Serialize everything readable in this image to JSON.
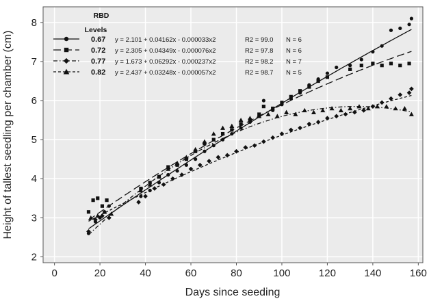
{
  "chart_data": {
    "type": "scatter",
    "xlabel": "Days since seeding",
    "ylabel": "Height of tallest seedling per chamber (cm)",
    "xlim": [
      -5,
      162
    ],
    "ylim": [
      1.85,
      8.4
    ],
    "xticks": [
      0,
      20,
      40,
      60,
      80,
      100,
      120,
      140,
      160
    ],
    "yticks": [
      2,
      3,
      4,
      5,
      6,
      7,
      8
    ],
    "grid": true,
    "legend_title": "RBD\nLevels",
    "legend_placement": "top-left",
    "series": [
      {
        "name": "0.67",
        "marker": "circle",
        "line_style": "solid",
        "equation": "y = 2.101 + 0.04162x - 0.000033x2",
        "r2": "R2 = 99.0",
        "n": "N = 6",
        "coef": [
          2.101,
          0.04162,
          -3.3e-05
        ],
        "x": [
          15,
          18,
          20,
          22,
          24,
          38,
          42,
          46,
          50,
          54,
          58,
          62,
          66,
          70,
          74,
          78,
          82,
          86,
          90,
          92,
          96,
          100,
          104,
          108,
          112,
          116,
          120,
          124,
          130,
          135,
          140,
          144,
          148,
          152,
          156,
          157
        ],
        "y": [
          2.6,
          2.9,
          3.0,
          3.15,
          3.3,
          3.55,
          3.7,
          3.9,
          4.1,
          4.2,
          4.35,
          4.5,
          4.7,
          4.85,
          5.0,
          5.15,
          5.3,
          5.45,
          5.6,
          6.0,
          5.75,
          5.9,
          6.05,
          6.2,
          6.4,
          6.55,
          6.7,
          6.85,
          6.9,
          7.05,
          7.25,
          7.4,
          7.8,
          7.85,
          7.95,
          8.1
        ]
      },
      {
        "name": "0.72",
        "marker": "square",
        "line_style": "long-dash",
        "equation": "y = 2.305 + 0.04349x - 0.000076x2",
        "r2": "R2 = 97.8",
        "n": "N = 6",
        "coef": [
          2.305,
          0.04349,
          -7.6e-05
        ],
        "x": [
          15,
          17,
          19,
          21,
          23,
          38,
          42,
          46,
          50,
          54,
          58,
          62,
          66,
          70,
          74,
          78,
          82,
          86,
          90,
          92,
          96,
          100,
          104,
          108,
          112,
          116,
          120,
          130,
          135,
          140,
          144,
          148,
          152,
          156
        ],
        "y": [
          3.15,
          3.45,
          3.5,
          3.3,
          3.45,
          3.75,
          3.9,
          4.05,
          4.3,
          4.35,
          4.5,
          4.7,
          4.9,
          5.0,
          5.15,
          5.25,
          5.4,
          5.5,
          5.65,
          5.85,
          5.8,
          5.95,
          6.1,
          6.25,
          6.35,
          6.5,
          6.6,
          6.8,
          6.9,
          6.95,
          6.9,
          6.95,
          6.9,
          6.95
        ]
      },
      {
        "name": "0.77",
        "marker": "diamond",
        "line_style": "dash-dot",
        "equation": "y = 1.673 + 0.06292x - 0.000237x2",
        "r2": "R2 = 98.2",
        "n": "N = 7",
        "coef": [
          1.673,
          0.06292,
          -0.000237
        ],
        "x": [
          15,
          18,
          21,
          24,
          37,
          40,
          44,
          48,
          52,
          56,
          60,
          64,
          68,
          72,
          76,
          80,
          84,
          88,
          92,
          96,
          100,
          104,
          108,
          112,
          116,
          120,
          124,
          128,
          132,
          136,
          140,
          144,
          148,
          152,
          156,
          157
        ],
        "y": [
          2.65,
          2.95,
          3.05,
          3.0,
          3.4,
          3.55,
          3.75,
          3.85,
          4.0,
          4.1,
          4.25,
          4.35,
          4.45,
          4.55,
          4.6,
          4.7,
          4.8,
          4.85,
          4.95,
          5.05,
          5.15,
          5.25,
          5.3,
          5.4,
          5.45,
          5.55,
          5.6,
          5.65,
          5.7,
          5.75,
          5.85,
          5.95,
          6.05,
          6.15,
          6.2,
          6.3
        ]
      },
      {
        "name": "0.82",
        "marker": "triangle",
        "line_style": "short-dash",
        "equation": "y = 2.437 + 0.03248x - 0.000057x2",
        "r2": "R2 = 98.7",
        "n": "N = 5",
        "coef": [
          2.437,
          0.03248,
          -5.7e-05
        ],
        "x": [
          16,
          19,
          22,
          25,
          38,
          42,
          46,
          50,
          54,
          58,
          62,
          66,
          70,
          74,
          78,
          82,
          86,
          90,
          94,
          98,
          102,
          106,
          110,
          114,
          118,
          122,
          126,
          130,
          134,
          138,
          142,
          146,
          150,
          154,
          157
        ],
        "y": [
          3.0,
          3.05,
          3.15,
          3.1,
          3.7,
          3.85,
          4.05,
          4.25,
          4.4,
          4.55,
          4.75,
          4.95,
          5.15,
          5.3,
          5.35,
          5.5,
          5.55,
          5.6,
          5.65,
          5.6,
          5.7,
          5.65,
          5.75,
          5.7,
          5.75,
          5.8,
          5.75,
          5.8,
          5.85,
          5.8,
          5.85,
          5.85,
          5.8,
          5.8,
          5.65
        ]
      }
    ]
  }
}
